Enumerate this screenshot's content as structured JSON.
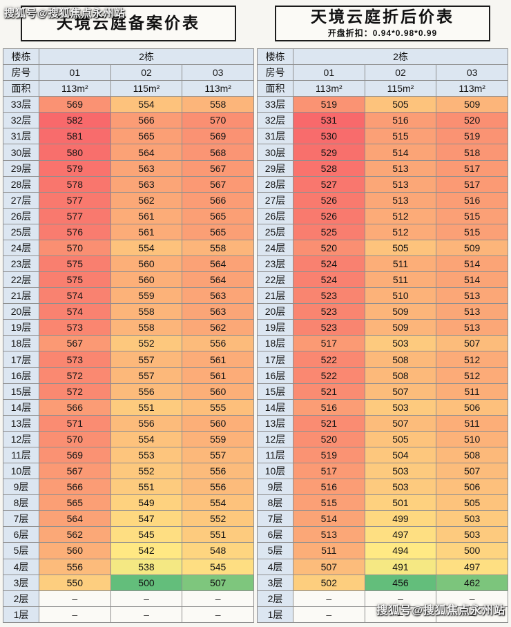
{
  "watermarks": {
    "top": "搜狐号@搜狐焦点永州站",
    "bottom": "搜狐号@搜狐焦点永州站"
  },
  "chart_data": [
    {
      "type": "heatmap",
      "title": "天境云庭备案价表",
      "subtitle": "",
      "header": {
        "building_label": "楼栋",
        "building_value": "2栋",
        "room_label": "房号",
        "rooms": [
          "01",
          "02",
          "03"
        ],
        "area_label": "面积",
        "areas": [
          "113m²",
          "115m²",
          "113m²"
        ]
      },
      "floors": [
        "33层",
        "32层",
        "31层",
        "30层",
        "29层",
        "28层",
        "27层",
        "26层",
        "25层",
        "24层",
        "23层",
        "22层",
        "21层",
        "20层",
        "19层",
        "18层",
        "17层",
        "16层",
        "15层",
        "14层",
        "13层",
        "12层",
        "11层",
        "10层",
        "9层",
        "8层",
        "7层",
        "6层",
        "5层",
        "4层",
        "3层",
        "2层",
        "1层"
      ],
      "rows": [
        [
          569,
          554,
          558
        ],
        [
          582,
          566,
          570
        ],
        [
          581,
          565,
          569
        ],
        [
          580,
          564,
          568
        ],
        [
          579,
          563,
          567
        ],
        [
          578,
          563,
          567
        ],
        [
          577,
          562,
          566
        ],
        [
          577,
          561,
          565
        ],
        [
          576,
          561,
          565
        ],
        [
          570,
          554,
          558
        ],
        [
          575,
          560,
          564
        ],
        [
          575,
          560,
          564
        ],
        [
          574,
          559,
          563
        ],
        [
          574,
          558,
          563
        ],
        [
          573,
          558,
          562
        ],
        [
          567,
          552,
          556
        ],
        [
          573,
          557,
          561
        ],
        [
          572,
          557,
          561
        ],
        [
          572,
          556,
          560
        ],
        [
          566,
          551,
          555
        ],
        [
          571,
          556,
          560
        ],
        [
          570,
          554,
          559
        ],
        [
          569,
          553,
          557
        ],
        [
          567,
          552,
          556
        ],
        [
          566,
          551,
          556
        ],
        [
          565,
          549,
          554
        ],
        [
          564,
          547,
          552
        ],
        [
          562,
          545,
          551
        ],
        [
          560,
          542,
          548
        ],
        [
          556,
          538,
          545
        ],
        [
          550,
          500,
          507
        ],
        [
          null,
          null,
          null
        ],
        [
          null,
          null,
          null
        ]
      ],
      "empty_marker": "–",
      "colorscale": {
        "min": 500,
        "max": 582,
        "low": "#63be7b",
        "mid": "#ffeb84",
        "high": "#f8696b"
      }
    },
    {
      "type": "heatmap",
      "title": "天境云庭折后价表",
      "subtitle": "开盘折扣：0.94*0.98*0.99",
      "header": {
        "building_label": "楼栋",
        "building_value": "2栋",
        "room_label": "房号",
        "rooms": [
          "01",
          "02",
          "03"
        ],
        "area_label": "面积",
        "areas": [
          "113m²",
          "115m²",
          "113m²"
        ]
      },
      "floors": [
        "33层",
        "32层",
        "31层",
        "30层",
        "29层",
        "28层",
        "27层",
        "26层",
        "25层",
        "24层",
        "23层",
        "22层",
        "21层",
        "20层",
        "19层",
        "18层",
        "17层",
        "16层",
        "15层",
        "14层",
        "13层",
        "12层",
        "11层",
        "10层",
        "9层",
        "8层",
        "7层",
        "6层",
        "5层",
        "4层",
        "3层",
        "2层",
        "1层"
      ],
      "rows": [
        [
          519,
          505,
          509
        ],
        [
          531,
          516,
          520
        ],
        [
          530,
          515,
          519
        ],
        [
          529,
          514,
          518
        ],
        [
          528,
          513,
          517
        ],
        [
          527,
          513,
          517
        ],
        [
          526,
          513,
          516
        ],
        [
          526,
          512,
          515
        ],
        [
          525,
          512,
          515
        ],
        [
          520,
          505,
          509
        ],
        [
          524,
          511,
          514
        ],
        [
          524,
          511,
          514
        ],
        [
          523,
          510,
          513
        ],
        [
          523,
          509,
          513
        ],
        [
          523,
          509,
          513
        ],
        [
          517,
          503,
          507
        ],
        [
          522,
          508,
          512
        ],
        [
          522,
          508,
          512
        ],
        [
          521,
          507,
          511
        ],
        [
          516,
          503,
          506
        ],
        [
          521,
          507,
          511
        ],
        [
          520,
          505,
          510
        ],
        [
          519,
          504,
          508
        ],
        [
          517,
          503,
          507
        ],
        [
          516,
          503,
          506
        ],
        [
          515,
          501,
          505
        ],
        [
          514,
          499,
          503
        ],
        [
          513,
          497,
          503
        ],
        [
          511,
          494,
          500
        ],
        [
          507,
          491,
          497
        ],
        [
          502,
          456,
          462
        ],
        [
          null,
          null,
          null
        ],
        [
          null,
          null,
          null
        ]
      ],
      "empty_marker": "–",
      "colorscale": {
        "min": 456,
        "max": 531,
        "low": "#63be7b",
        "mid": "#ffeb84",
        "high": "#f8696b"
      }
    }
  ]
}
